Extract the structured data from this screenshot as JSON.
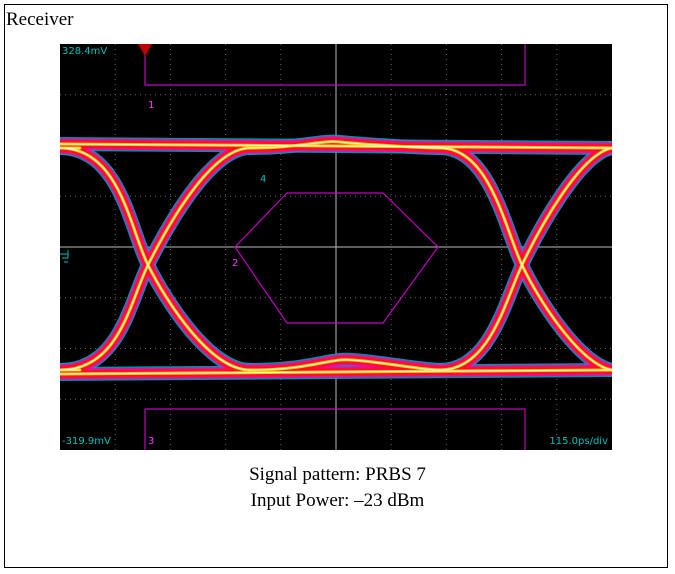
{
  "header": {
    "title": "Receiver"
  },
  "scope": {
    "top_level": "328.4mV",
    "bottom_level": "-319.9mV",
    "timebase": "115.0ps/div",
    "markers": [
      "1",
      "2",
      "3",
      "4"
    ]
  },
  "caption": {
    "line1": "Signal pattern: PRBS 7",
    "line2": "Input Power: –23 dBm"
  }
}
